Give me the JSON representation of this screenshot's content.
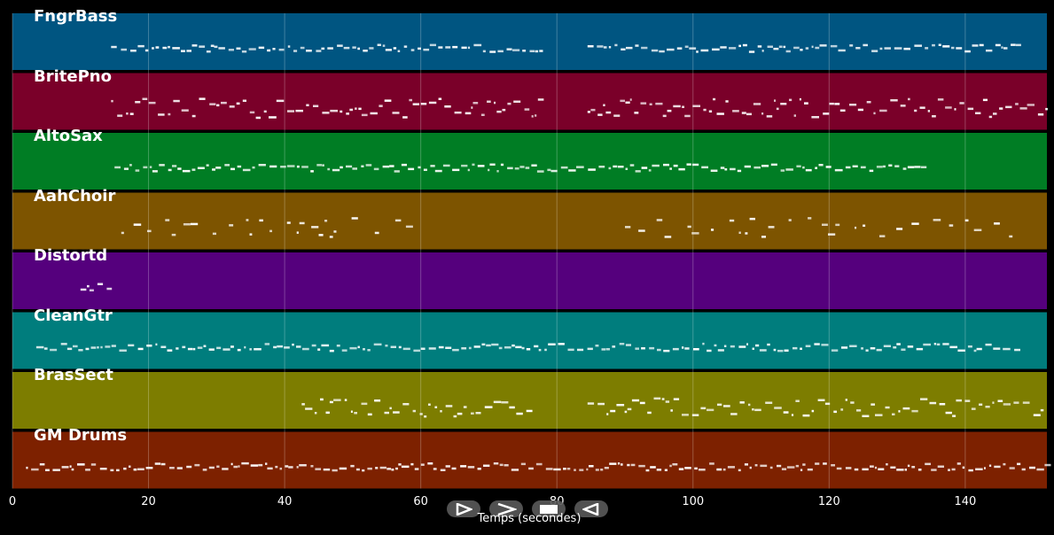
{
  "tracks": [
    {
      "name": "FngrBass",
      "color": "#005581"
    },
    {
      "name": "BritePno",
      "color": "#7a0029"
    },
    {
      "name": "AltoSax",
      "color": "#007d24"
    },
    {
      "name": "AahChoir",
      "color": "#7d5400"
    },
    {
      "name": "Distortd",
      "color": "#55007d"
    },
    {
      "name": "CleanGtr",
      "color": "#007d7d"
    },
    {
      "name": "BrasSect",
      "color": "#7d7d00"
    },
    {
      "name": "GM Drums",
      "color": "#7d2100"
    }
  ],
  "axis": {
    "xlabel": "Temps (secondes)",
    "xlim": [
      0,
      152
    ],
    "ticks": [
      "0",
      "20",
      "40",
      "60",
      "80",
      "100",
      "120",
      "140"
    ],
    "grid": true
  },
  "controls": [
    {
      "name": "play-button",
      "icon": "play-icon"
    },
    {
      "name": "next-button",
      "icon": "chevron-right-icon"
    },
    {
      "name": "stop-button",
      "icon": "stop-icon"
    },
    {
      "name": "rewind-button",
      "icon": "rewind-icon"
    }
  ],
  "chart_data": {
    "type": "piano-roll",
    "xlabel": "Temps (secondes)",
    "xlim": [
      0,
      152
    ],
    "grid": true,
    "series": [
      {
        "name": "FngrBass",
        "segments": [
          [
            14.5,
            77.5
          ],
          [
            84.5,
            147.5
          ]
        ]
      },
      {
        "name": "BritePno",
        "segments": [
          [
            14.5,
            77.5
          ],
          [
            84.5,
            152
          ]
        ]
      },
      {
        "name": "AltoSax",
        "segments": [
          [
            15,
            133.5
          ]
        ]
      },
      {
        "name": "AahChoir",
        "segments": [
          [
            16,
            59.5
          ],
          [
            90,
            147
          ]
        ]
      },
      {
        "name": "Distortd",
        "segments": [
          [
            10,
            14
          ]
        ]
      },
      {
        "name": "CleanGtr",
        "segments": [
          [
            3.5,
            147.5
          ]
        ]
      },
      {
        "name": "BrasSect",
        "segments": [
          [
            42.5,
            76.5
          ],
          [
            84.5,
            152
          ]
        ]
      },
      {
        "name": "GM Drums",
        "segments": [
          [
            2,
            152
          ]
        ]
      }
    ]
  }
}
